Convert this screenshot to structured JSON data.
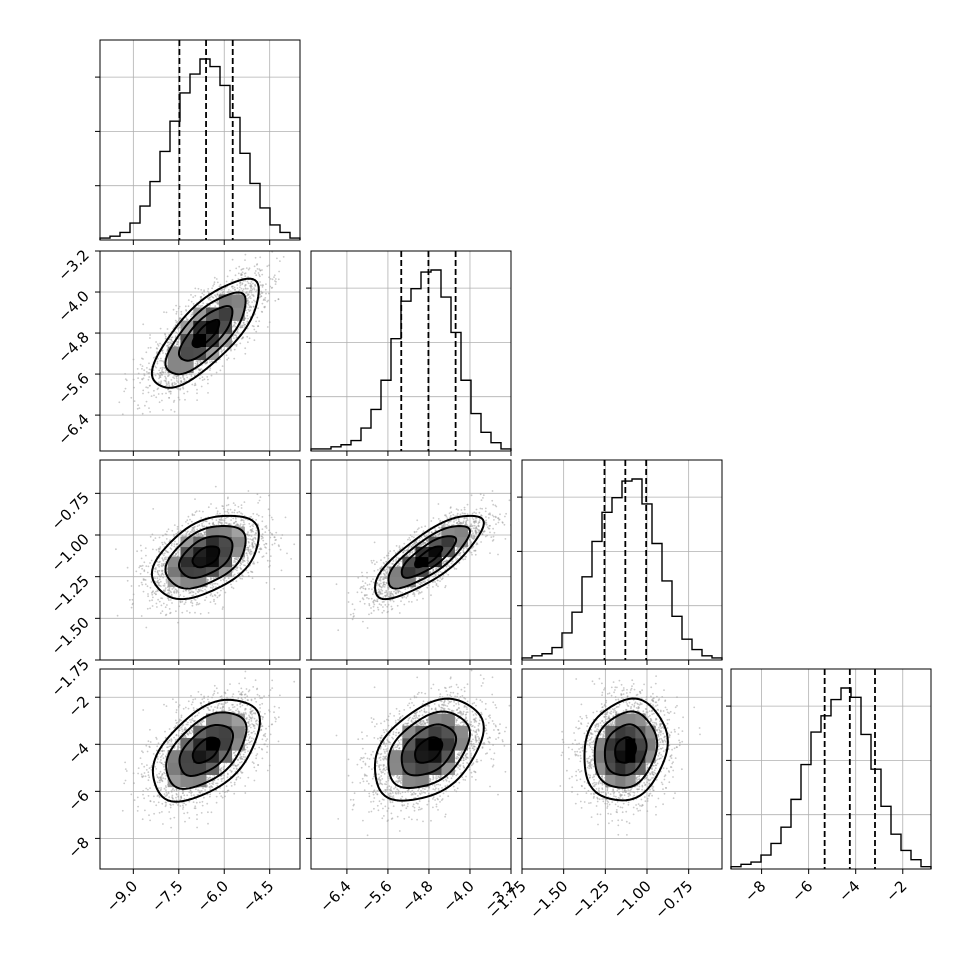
{
  "chart_data": {
    "type": "corner",
    "description_source": "corner plot of 4 parameters: 1D marginal histograms on the diagonal with dashed quantile lines, 2D scatter + density contours below the diagonal",
    "grid": true,
    "colors": {
      "frame": "#000000",
      "grid": "#b0b0b0",
      "points": "#9e9e9e",
      "density_dark": "#000000",
      "density_light": "#e6e6e6"
    },
    "parameters": [
      {
        "range": [
          -10.1,
          -3.5
        ],
        "ticks": [
          -9.0,
          -7.5,
          -6.0,
          -4.5
        ],
        "tick_labels": [
          "−9.0",
          "−7.5",
          "−6.0",
          "−4.5"
        ],
        "mean": -6.6,
        "sd": 0.88,
        "quantiles": [
          -7.48,
          -6.6,
          -5.72
        ]
      },
      {
        "range": [
          -7.1,
          -3.2
        ],
        "ticks": [
          -6.4,
          -5.6,
          -4.8,
          -4.0,
          -3.2
        ],
        "tick_labels": [
          "−6.4",
          "−5.6",
          "−4.8",
          "−4.0",
          "−3.2"
        ],
        "mean": -4.81,
        "sd": 0.53,
        "quantiles": [
          -5.34,
          -4.81,
          -4.28
        ]
      },
      {
        "range": [
          -1.75,
          -0.55
        ],
        "ticks": [
          -1.75,
          -1.5,
          -1.25,
          -1.0,
          -0.75
        ],
        "tick_labels": [
          "−1.75",
          "−1.50",
          "−1.25",
          "−1.00",
          "−0.75"
        ],
        "mean": -1.13,
        "sd": 0.125,
        "quantiles": [
          -1.255,
          -1.13,
          -1.005
        ]
      },
      {
        "range": [
          -9.3,
          -0.8
        ],
        "ticks": [
          -8,
          -6,
          -4,
          -2
        ],
        "tick_labels": [
          "−8",
          "−6",
          "−4",
          "−2"
        ],
        "mean": -4.25,
        "sd": 1.08,
        "quantiles": [
          -5.32,
          -4.25,
          -3.18
        ]
      }
    ],
    "correlations": {
      "1-0": 0.75,
      "2-0": 0.45,
      "2-1": 0.78,
      "3-0": 0.5,
      "3-1": 0.4,
      "3-2": 0.15
    },
    "histograms": [
      {
        "bin_edges": [
          -10.1,
          -9.77,
          -9.44,
          -9.11,
          -8.78,
          -8.45,
          -8.12,
          -7.79,
          -7.46,
          -7.13,
          -6.8,
          -6.47,
          -6.14,
          -5.81,
          -5.48,
          -5.15,
          -4.82,
          -4.49,
          -4.16,
          -3.83,
          -3.5
        ],
        "counts": [
          1,
          2,
          4,
          9,
          18,
          31,
          47,
          63,
          78,
          88,
          96,
          92,
          82,
          65,
          46,
          30,
          17,
          8,
          4,
          1
        ]
      },
      {
        "bin_edges": [
          -7.1,
          -6.905,
          -6.71,
          -6.515,
          -6.32,
          -6.125,
          -5.93,
          -5.735,
          -5.54,
          -5.345,
          -5.15,
          -4.955,
          -4.76,
          -4.565,
          -4.37,
          -4.175,
          -3.98,
          -3.785,
          -3.59,
          -3.395,
          -3.2
        ],
        "counts": [
          1,
          1,
          2,
          3,
          5,
          11,
          20,
          34,
          54,
          72,
          78,
          86,
          87,
          74,
          57,
          34,
          18,
          9,
          4,
          1
        ]
      },
      {
        "bin_edges": [
          -1.75,
          -1.69,
          -1.63,
          -1.57,
          -1.51,
          -1.45,
          -1.39,
          -1.33,
          -1.27,
          -1.21,
          -1.15,
          -1.09,
          -1.03,
          -0.97,
          -0.91,
          -0.85,
          -0.79,
          -0.73,
          -0.67,
          -0.61,
          -0.55
        ],
        "counts": [
          1,
          2,
          3,
          6,
          13,
          23,
          40,
          57,
          71,
          78,
          86,
          87,
          75,
          56,
          38,
          21,
          10,
          5,
          2,
          1
        ]
      },
      {
        "bin_edges": [
          -9.3,
          -8.875,
          -8.45,
          -8.025,
          -7.6,
          -7.175,
          -6.75,
          -6.325,
          -5.9,
          -5.475,
          -5.05,
          -4.625,
          -4.2,
          -3.775,
          -3.35,
          -2.925,
          -2.5,
          -2.075,
          -1.65,
          -1.225,
          -0.8
        ],
        "counts": [
          1,
          2,
          3,
          6,
          11,
          18,
          30,
          45,
          59,
          66,
          73,
          78,
          74,
          58,
          43,
          27,
          15,
          8,
          4,
          1
        ]
      }
    ],
    "density_levels_sigma": [
      0.5,
      1.0,
      1.5,
      2.0
    ]
  }
}
